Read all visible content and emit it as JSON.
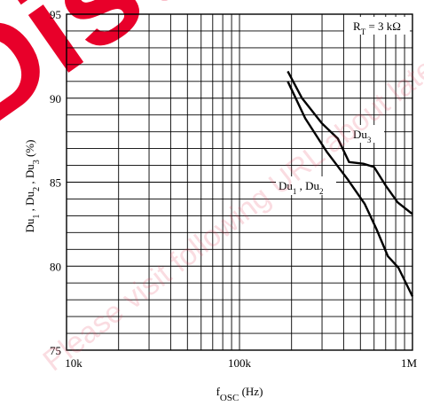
{
  "chart_data": {
    "type": "line",
    "x_scale": "log",
    "xlim": [
      10000,
      1000000
    ],
    "ylim": [
      75,
      95
    ],
    "x_ticks": [
      10000,
      100000,
      1000000
    ],
    "x_tick_labels": [
      "10k",
      "100k",
      "1M"
    ],
    "y_ticks": [
      75,
      80,
      85,
      90,
      95
    ],
    "y_tick_labels": [
      "75",
      "80",
      "85",
      "90",
      "95"
    ],
    "xlabel_main": "f",
    "xlabel_sub": "OSC",
    "xlabel_unit": "(Hz)",
    "ylabel": "Du1 , Du2 , Du3 (%)",
    "grid": true,
    "condition_label": "R_T = 3 kΩ",
    "series": [
      {
        "name": "Du3",
        "x": [
          190000,
          230000,
          300000,
          370000,
          430000,
          520000,
          600000,
          700000,
          820000,
          1000000
        ],
        "y": [
          91.6,
          90.0,
          88.5,
          87.6,
          86.2,
          86.1,
          85.9,
          84.8,
          83.8,
          83.1
        ]
      },
      {
        "name": "Du1 , Du2",
        "x": [
          190000,
          240000,
          320000,
          420000,
          530000,
          620000,
          720000,
          830000,
          1000000
        ],
        "y": [
          91.0,
          88.8,
          86.8,
          85.2,
          83.7,
          82.2,
          80.6,
          79.9,
          78.2
        ]
      }
    ],
    "annotations": [
      {
        "text": "Du",
        "sub": "3",
        "series": "Du3"
      },
      {
        "text": "Du",
        "sub": "1",
        "text2": " , Du",
        "sub2": "2",
        "series": "Du1 , Du2"
      }
    ]
  },
  "labels": {
    "rt_main": "R",
    "rt_sub": "T",
    "rt_value": " = 3 kΩ",
    "y_du": "Du",
    "y_sub1": "1",
    "y_sub2": "2",
    "y_sub3": "3",
    "y_sep": " , ",
    "y_unit": "(%)"
  },
  "watermark": {
    "big_text": "Disc",
    "overlay_text": "Please visit following URL about latest information. https://panasonic.net/sc/en"
  }
}
